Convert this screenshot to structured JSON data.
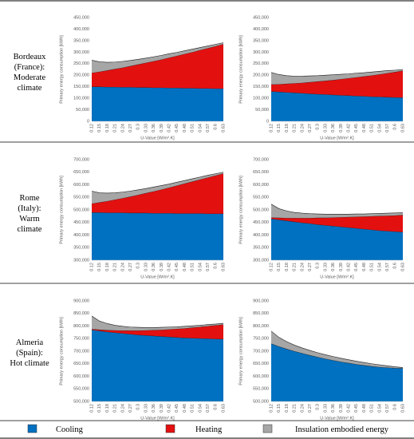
{
  "row_labels": [
    [
      "Bordeaux",
      "(France):",
      "Moderate",
      "climate"
    ],
    [
      "Rome",
      "(Italy):",
      "Warm",
      "climate"
    ],
    [
      "Almeria",
      "(Spain):",
      "Hot climate"
    ]
  ],
  "chart_data": [
    {
      "type": "area",
      "xlabel": "U-Value [W/m².K]",
      "ylabel": "Primary energy consumption [kWh]",
      "categories": [
        "0.12",
        "0.15",
        "0.18",
        "0.21",
        "0.24",
        "0.27",
        "0.3",
        "0.33",
        "0.36",
        "0.39",
        "0.42",
        "0.45",
        "0.48",
        "0.51",
        "0.54",
        "0.57",
        "0.6",
        "0.63"
      ],
      "ylim": [
        0,
        450000
      ],
      "yticks": [
        0,
        {
          "value": 50000,
          "label": "50,000"
        },
        {
          "value": 100000,
          "label": "100,000"
        },
        {
          "value": 150000,
          "label": "150,000"
        },
        {
          "value": 200000,
          "label": "200,000"
        },
        {
          "value": 250000,
          "label": "250,000"
        },
        {
          "value": 300000,
          "label": "300,000"
        },
        {
          "value": 350000,
          "label": "350,000"
        },
        {
          "value": 400000,
          "label": "400,000"
        },
        {
          "value": 450000,
          "label": "450,000"
        }
      ],
      "grid": false,
      "series": [
        {
          "name": "Cooling",
          "color": "#0070c0",
          "values": [
            150000,
            150000,
            149000,
            149000,
            148000,
            148000,
            147000,
            147000,
            146000,
            146000,
            145000,
            145000,
            144000,
            144000,
            143000,
            143000,
            142000,
            142000
          ]
        },
        {
          "name": "Heating",
          "color": "#e31010",
          "values": [
            60000,
            65000,
            72000,
            78000,
            85000,
            92000,
            100000,
            107000,
            115000,
            122000,
            131000,
            139000,
            148000,
            156000,
            166000,
            174000,
            184000,
            193000
          ]
        },
        {
          "name": "Insulation embodied energy",
          "color": "#a6a6a6",
          "values": [
            55000,
            43000,
            35000,
            30000,
            27000,
            24000,
            22000,
            20000,
            19000,
            18000,
            17000,
            15000,
            14000,
            13000,
            11000,
            10000,
            8000,
            6000
          ]
        }
      ]
    },
    {
      "type": "area",
      "xlabel": "U-Value [W/m².K]",
      "ylabel": "Primary energy consumption [kWh]",
      "categories": [
        "0.12",
        "0.15",
        "0.18",
        "0.21",
        "0.24",
        "0.27",
        "0.3",
        "0.33",
        "0.36",
        "0.39",
        "0.42",
        "0.45",
        "0.48",
        "0.51",
        "0.54",
        "0.57",
        "0.6",
        "0.63"
      ],
      "ylim": [
        0,
        450000
      ],
      "yticks": [
        0,
        {
          "value": 50000,
          "label": "50,000"
        },
        {
          "value": 100000,
          "label": "100,000"
        },
        {
          "value": 150000,
          "label": "150,000"
        },
        {
          "value": 200000,
          "label": "200,000"
        },
        {
          "value": 250000,
          "label": "250,000"
        },
        {
          "value": 300000,
          "label": "300,000"
        },
        {
          "value": 350000,
          "label": "350,000"
        },
        {
          "value": 400000,
          "label": "400,000"
        },
        {
          "value": 450000,
          "label": "450,000"
        }
      ],
      "grid": false,
      "series": [
        {
          "name": "Cooling",
          "color": "#0070c0",
          "values": [
            130000,
            128000,
            126000,
            124000,
            122000,
            120000,
            118000,
            117000,
            115000,
            113000,
            112000,
            110000,
            109000,
            107000,
            106000,
            105000,
            104000,
            103000
          ]
        },
        {
          "name": "Heating",
          "color": "#e31010",
          "values": [
            30000,
            33000,
            37000,
            41000,
            45000,
            50000,
            55000,
            59000,
            64000,
            70000,
            75000,
            81000,
            86000,
            92000,
            98000,
            104000,
            110000,
            117000
          ]
        },
        {
          "name": "Insulation embodied energy",
          "color": "#a6a6a6",
          "values": [
            52000,
            42000,
            35000,
            31000,
            29000,
            27000,
            25000,
            24000,
            23000,
            21000,
            19000,
            18000,
            16000,
            15000,
            13000,
            11000,
            8000,
            5000
          ]
        }
      ]
    },
    {
      "type": "area",
      "xlabel": "U-Value [W/m².K]",
      "ylabel": "Primary energy consumption [kWh]",
      "categories": [
        "0.12",
        "0.15",
        "0.18",
        "0.21",
        "0.24",
        "0.27",
        "0.3",
        "0.33",
        "0.36",
        "0.39",
        "0.42",
        "0.45",
        "0.48",
        "0.51",
        "0.54",
        "0.57",
        "0.6",
        "0.63"
      ],
      "ylim": [
        300000,
        700000
      ],
      "yticks": [
        {
          "value": 300000,
          "label": "300,000"
        },
        {
          "value": 350000,
          "label": "350,000"
        },
        {
          "value": 400000,
          "label": "400,000"
        },
        {
          "value": 450000,
          "label": "450,000"
        },
        {
          "value": 500000,
          "label": "500,000"
        },
        {
          "value": 550000,
          "label": "550,000"
        },
        {
          "value": 600000,
          "label": "600,000"
        },
        {
          "value": 650000,
          "label": "650,000"
        },
        {
          "value": 700000,
          "label": "700,000"
        }
      ],
      "grid": false,
      "series": [
        {
          "name": "Cooling",
          "color": "#0070c0",
          "values": [
            490000,
            490000,
            489000,
            489000,
            489000,
            488000,
            488000,
            488000,
            487000,
            487000,
            487000,
            486000,
            486000,
            486000,
            486000,
            485000,
            485000,
            485000
          ]
        },
        {
          "name": "Heating",
          "color": "#e31010",
          "values": [
            35000,
            40000,
            46000,
            52000,
            58000,
            65000,
            72000,
            79000,
            87000,
            94000,
            102000,
            111000,
            119000,
            127000,
            135000,
            144000,
            152000,
            160000
          ]
        },
        {
          "name": "Insulation embodied energy",
          "color": "#a6a6a6",
          "values": [
            50000,
            38000,
            32000,
            27000,
            24000,
            22000,
            20000,
            18000,
            17000,
            16000,
            14000,
            13000,
            12000,
            11000,
            10000,
            9000,
            7000,
            5000
          ]
        }
      ]
    },
    {
      "type": "area",
      "xlabel": "U-Value [W/m².K]",
      "ylabel": "Primary energy consumption [kWh]",
      "categories": [
        "0.12",
        "0.15",
        "0.18",
        "0.21",
        "0.24",
        "0.27",
        "0.3",
        "0.33",
        "0.36",
        "0.39",
        "0.42",
        "0.45",
        "0.48",
        "0.51",
        "0.54",
        "0.57",
        "0.6",
        "0.63"
      ],
      "ylim": [
        300000,
        700000
      ],
      "yticks": [
        {
          "value": 300000,
          "label": "300,000"
        },
        {
          "value": 350000,
          "label": "350,000"
        },
        {
          "value": 400000,
          "label": "400,000"
        },
        {
          "value": 450000,
          "label": "450,000"
        },
        {
          "value": 500000,
          "label": "500,000"
        },
        {
          "value": 550000,
          "label": "550,000"
        },
        {
          "value": 600000,
          "label": "600,000"
        },
        {
          "value": 650000,
          "label": "650,000"
        },
        {
          "value": 700000,
          "label": "700,000"
        }
      ],
      "grid": false,
      "series": [
        {
          "name": "Cooling",
          "color": "#0070c0",
          "values": [
            465000,
            461000,
            457000,
            453000,
            449000,
            446000,
            442000,
            439000,
            436000,
            433000,
            430000,
            427000,
            424000,
            421000,
            418000,
            416000,
            414000,
            412000
          ]
        },
        {
          "name": "Heating",
          "color": "#e31010",
          "values": [
            5000,
            8000,
            11000,
            15000,
            19000,
            22000,
            27000,
            30000,
            34000,
            38000,
            42000,
            46000,
            50000,
            54000,
            58000,
            61000,
            64000,
            68000
          ]
        },
        {
          "name": "Insulation embodied energy",
          "color": "#a6a6a6",
          "values": [
            53000,
            36000,
            28000,
            22000,
            19000,
            17000,
            15000,
            14000,
            13000,
            12000,
            11000,
            11000,
            10000,
            10000,
            10000,
            10000,
            10000,
            9000
          ]
        }
      ]
    },
    {
      "type": "area",
      "xlabel": "U-Value [W/m².K]",
      "ylabel": "Primary energy consumption [kWh]",
      "categories": [
        "0.12",
        "0.15",
        "0.18",
        "0.21",
        "0.24",
        "0.27",
        "0.3",
        "0.33",
        "0.36",
        "0.39",
        "0.42",
        "0.45",
        "0.48",
        "0.51",
        "0.54",
        "0.57",
        "0.6",
        "0.63"
      ],
      "ylim": [
        500000,
        900000
      ],
      "yticks": [
        {
          "value": 500000,
          "label": "500,000"
        },
        {
          "value": 550000,
          "label": "550,000"
        },
        {
          "value": 600000,
          "label": "600,000"
        },
        {
          "value": 650000,
          "label": "650,000"
        },
        {
          "value": 700000,
          "label": "700,000"
        },
        {
          "value": 750000,
          "label": "750,000"
        },
        {
          "value": 800000,
          "label": "800,000"
        },
        {
          "value": 850000,
          "label": "850,000"
        },
        {
          "value": 900000,
          "label": "900,000"
        }
      ],
      "grid": false,
      "series": [
        {
          "name": "Cooling",
          "color": "#0070c0",
          "values": [
            785000,
            781000,
            777000,
            774000,
            771000,
            768000,
            765000,
            763000,
            761000,
            759000,
            757000,
            755000,
            753000,
            752000,
            751000,
            750000,
            749000,
            748000
          ]
        },
        {
          "name": "Heating",
          "color": "#e31010",
          "values": [
            3000,
            5000,
            7000,
            9000,
            11000,
            14000,
            17000,
            20000,
            23000,
            26000,
            30000,
            34000,
            38000,
            42000,
            46000,
            50000,
            54000,
            58000
          ]
        },
        {
          "name": "Insulation embodied energy",
          "color": "#a6a6a6",
          "values": [
            52000,
            34000,
            26000,
            20000,
            17000,
            14000,
            13000,
            11000,
            10000,
            10000,
            9000,
            8000,
            8000,
            7000,
            6000,
            6000,
            5000,
            5000
          ]
        }
      ]
    },
    {
      "type": "area",
      "xlabel": "U-Value [W/m².K]",
      "ylabel": "Primary energy consumption [kWh]",
      "categories": [
        "0.12",
        "0.15",
        "0.18",
        "0.21",
        "0.24",
        "0.27",
        "0.3",
        "0.33",
        "0.36",
        "0.39",
        "0.42",
        "0.45",
        "0.48",
        "0.51",
        "0.54",
        "0.57",
        "0.6",
        "0.63"
      ],
      "ylim": [
        500000,
        900000
      ],
      "yticks": [
        {
          "value": 500000,
          "label": "500,000"
        },
        {
          "value": 550000,
          "label": "550,000"
        },
        {
          "value": 600000,
          "label": "600,000"
        },
        {
          "value": 650000,
          "label": "650,000"
        },
        {
          "value": 700000,
          "label": "700,000"
        },
        {
          "value": 750000,
          "label": "750,000"
        },
        {
          "value": 800000,
          "label": "800,000"
        },
        {
          "value": 850000,
          "label": "850,000"
        },
        {
          "value": 900000,
          "label": "900,000"
        }
      ],
      "grid": false,
      "series": [
        {
          "name": "Cooling",
          "color": "#0070c0",
          "values": [
            730000,
            719000,
            709000,
            700000,
            692000,
            684000,
            677000,
            670000,
            664000,
            658000,
            653000,
            648000,
            644000,
            640000,
            637000,
            635000,
            633000,
            632000
          ]
        },
        {
          "name": "Heating",
          "color": "#e31010",
          "values": [
            0,
            0,
            0,
            0,
            0,
            0,
            0,
            0,
            0,
            0,
            0,
            0,
            0,
            0,
            0,
            0,
            0,
            0
          ]
        },
        {
          "name": "Insulation embodied energy",
          "color": "#a6a6a6",
          "values": [
            50000,
            36000,
            29000,
            24000,
            21000,
            19000,
            17000,
            16000,
            15000,
            14000,
            13000,
            12000,
            11000,
            10000,
            9000,
            7000,
            5000,
            3000
          ]
        }
      ]
    }
  ]
}
